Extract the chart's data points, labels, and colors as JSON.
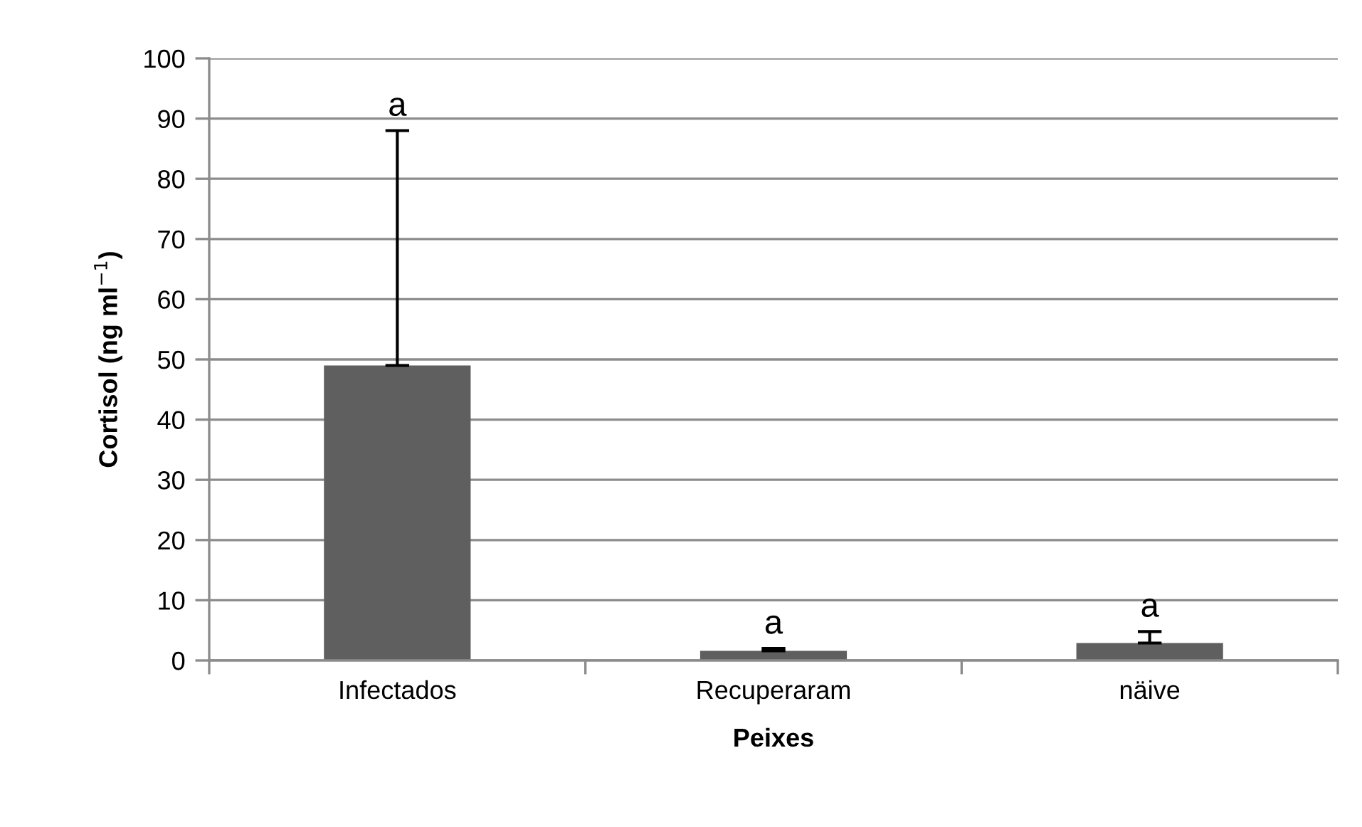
{
  "chart_data": {
    "type": "bar",
    "categories": [
      "Infectados",
      "Recuperaram",
      "näive"
    ],
    "values": [
      49,
      1.6,
      2.9
    ],
    "errors": [
      [
        49,
        88
      ],
      [
        1.6,
        2.0
      ],
      [
        2.9,
        4.8
      ]
    ],
    "color": "#5f5f5f",
    "xlabel": "Peixes",
    "ylabel": "Cortisol (ng ml$^{−1}$)",
    "ylim": [
      0,
      100
    ],
    "yticks": [
      0,
      10,
      20,
      30,
      40,
      50,
      60,
      70,
      80,
      90,
      100
    ],
    "grid": "y",
    "annotations": [
      {
        "text": "a",
        "x": "Infectados",
        "y": 88
      },
      {
        "text": "a",
        "x": "Recuperaram",
        "y": 2.0
      },
      {
        "text": "a",
        "x": "näive",
        "y": 4.8
      }
    ]
  }
}
